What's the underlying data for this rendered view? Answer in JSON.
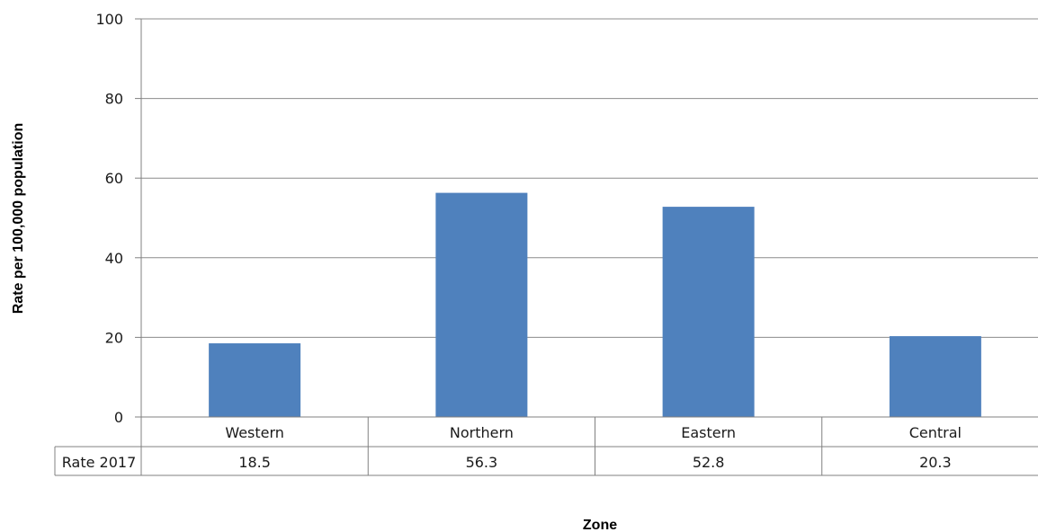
{
  "chart_data": {
    "type": "bar",
    "categories": [
      "Western",
      "Northern",
      "Eastern",
      "Central"
    ],
    "series": [
      {
        "name": "Rate 2017",
        "values": [
          18.5,
          56.3,
          52.8,
          20.3
        ]
      }
    ],
    "value_labels": [
      "18.5",
      "56.3",
      "52.8",
      "20.3"
    ],
    "xlabel": "Zone",
    "ylabel": "Rate per 100,000 population",
    "ylim": [
      0,
      100
    ],
    "yticks": [
      0,
      20,
      40,
      60,
      80,
      100
    ],
    "grid": true,
    "legend": "data table below axis",
    "colors": {
      "bar": "#4f81bd",
      "grid": "#8c8c8c",
      "axis": "#808080"
    }
  }
}
